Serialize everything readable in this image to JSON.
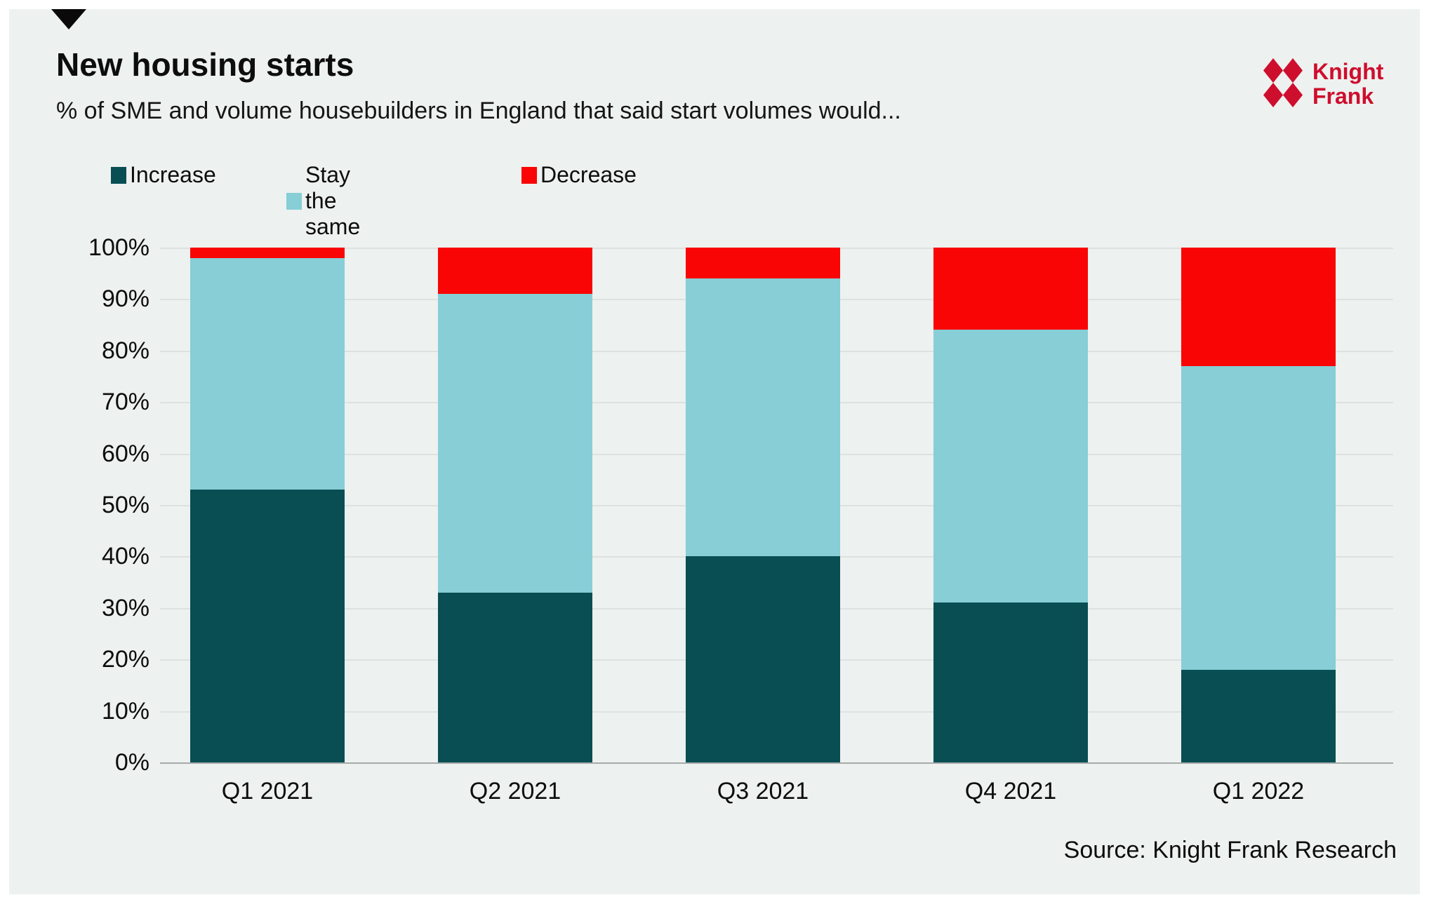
{
  "header": {
    "title": "New housing starts",
    "subtitle": "% of SME and volume housebuilders in England that said start volumes would...",
    "logo": {
      "line1": "Knight",
      "line2": "Frank",
      "color": "#CE0E2D"
    }
  },
  "chart_data": {
    "type": "bar",
    "stacked": true,
    "title": "New housing starts",
    "subtitle": "% of SME and volume housebuilders in England that said start volumes would...",
    "xlabel": "",
    "ylabel": "",
    "categories": [
      "Q1 2021",
      "Q2 2021",
      "Q3 2021",
      "Q4 2021",
      "Q1 2022"
    ],
    "series": [
      {
        "name": "Increase",
        "color": "#084E53",
        "values": [
          53,
          33,
          40,
          31,
          18
        ]
      },
      {
        "name": "Stay the same",
        "color": "#87CED6",
        "values": [
          45,
          58,
          54,
          53,
          59
        ]
      },
      {
        "name": "Decrease",
        "color": "#F90505",
        "values": [
          2,
          9,
          6,
          16,
          23
        ]
      }
    ],
    "ylim": [
      0,
      100
    ],
    "ytick_step": 10,
    "ytick_suffix": "%",
    "grid": "horizontal",
    "legend_position": "top-left"
  },
  "footer": {
    "source": "Source: Knight Frank Research"
  },
  "colors": {
    "page_bg": "#FFFFFF",
    "card_bg": "#EDF1EF",
    "gridline": "#DDE2E0",
    "axis_line": "#A6AAA9",
    "marker": "#0A0A0A"
  }
}
